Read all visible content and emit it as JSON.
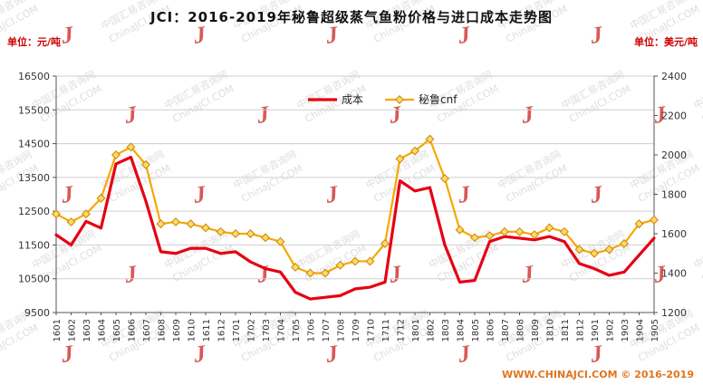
{
  "page": {
    "title": "JCI：2016-2019年秘鲁超级蒸气鱼粉价格与进口成本走势图",
    "left_unit": "单位：元/吨",
    "right_unit": "单位：美元/吨",
    "footer": "WWW.CHINAJCI.COM © 2016-2019"
  },
  "watermark": {
    "line1": "中国汇易咨询网",
    "line2": "ChinaJCI.COM",
    "logo": "J"
  },
  "chart_data": {
    "type": "line",
    "title": "JCI：2016-2019年秘鲁超级蒸气鱼粉价格与进口成本走势图",
    "legend_position": "top-center",
    "grid": true,
    "categories": [
      "1601",
      "1602",
      "1603",
      "1604",
      "1605",
      "1606",
      "1607",
      "1608",
      "1609",
      "1610",
      "1611",
      "1612",
      "1701",
      "1702",
      "1703",
      "1704",
      "1705",
      "1706",
      "1707",
      "1708",
      "1709",
      "1710",
      "1711",
      "1712",
      "1801",
      "1802",
      "1803",
      "1804",
      "1805",
      "1806",
      "1807",
      "1808",
      "1809",
      "1810",
      "1811",
      "1812",
      "1901",
      "1902",
      "1903",
      "1904",
      "1905"
    ],
    "left_axis": {
      "unit": "元/吨",
      "min": 9500,
      "max": 16500,
      "step": 1000
    },
    "right_axis": {
      "unit": "美元/吨",
      "min": 1200,
      "max": 2400,
      "step": 200
    },
    "series": [
      {
        "name": "成本",
        "axis": "left",
        "color": "#e60012",
        "width": 3.2,
        "marker": "none",
        "values": [
          11800,
          11500,
          12200,
          12000,
          13900,
          14100,
          12800,
          11300,
          11250,
          11400,
          11400,
          11250,
          11300,
          11000,
          10800,
          10700,
          10100,
          9900,
          9950,
          10000,
          10200,
          10250,
          10400,
          13400,
          13100,
          13200,
          11500,
          10400,
          10450,
          11600,
          11750,
          11700,
          11650,
          11750,
          11600,
          10950,
          10800,
          10600,
          10700,
          11200,
          11700
        ]
      },
      {
        "name": "秘鲁cnf",
        "axis": "right",
        "color": "#f5a800",
        "width": 2.2,
        "marker": "diamond",
        "marker_fill": "#ffd966",
        "marker_stroke": "#c8860a",
        "values": [
          1700,
          1660,
          1700,
          1780,
          2000,
          2040,
          1950,
          1650,
          1660,
          1650,
          1630,
          1610,
          1600,
          1600,
          1580,
          1560,
          1430,
          1400,
          1400,
          1440,
          1460,
          1460,
          1550,
          1980,
          2020,
          2080,
          1880,
          1620,
          1580,
          1590,
          1610,
          1610,
          1595,
          1630,
          1610,
          1520,
          1500,
          1520,
          1550,
          1650,
          1670
        ]
      }
    ]
  }
}
